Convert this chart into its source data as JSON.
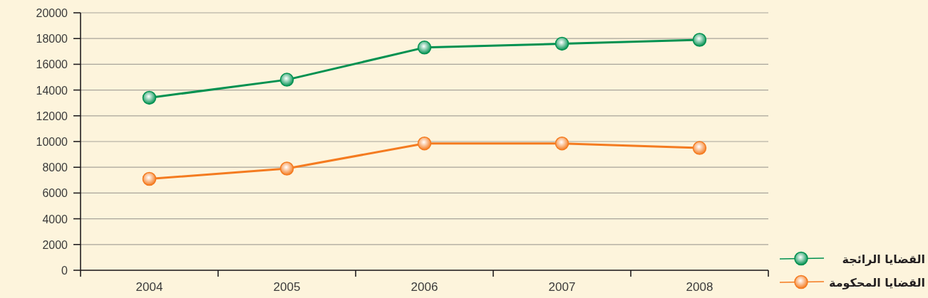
{
  "chart_data": {
    "type": "line",
    "categories": [
      "2004",
      "2005",
      "2006",
      "2007",
      "2008"
    ],
    "series": [
      {
        "name": "القضايا الرائجة",
        "color": "#009150",
        "values": [
          13400,
          14800,
          17300,
          17600,
          17900
        ]
      },
      {
        "name": "القضايا المحكومة",
        "color": "#f47b20",
        "values": [
          7100,
          7900,
          9850,
          9850,
          9500
        ]
      }
    ],
    "ylim": [
      0,
      20000
    ],
    "yticks": [
      0,
      2000,
      4000,
      6000,
      8000,
      10000,
      12000,
      14000,
      16000,
      18000,
      20000
    ],
    "grid": "y",
    "legend": "bottom right",
    "marker": "circle",
    "line_style": "solid"
  }
}
